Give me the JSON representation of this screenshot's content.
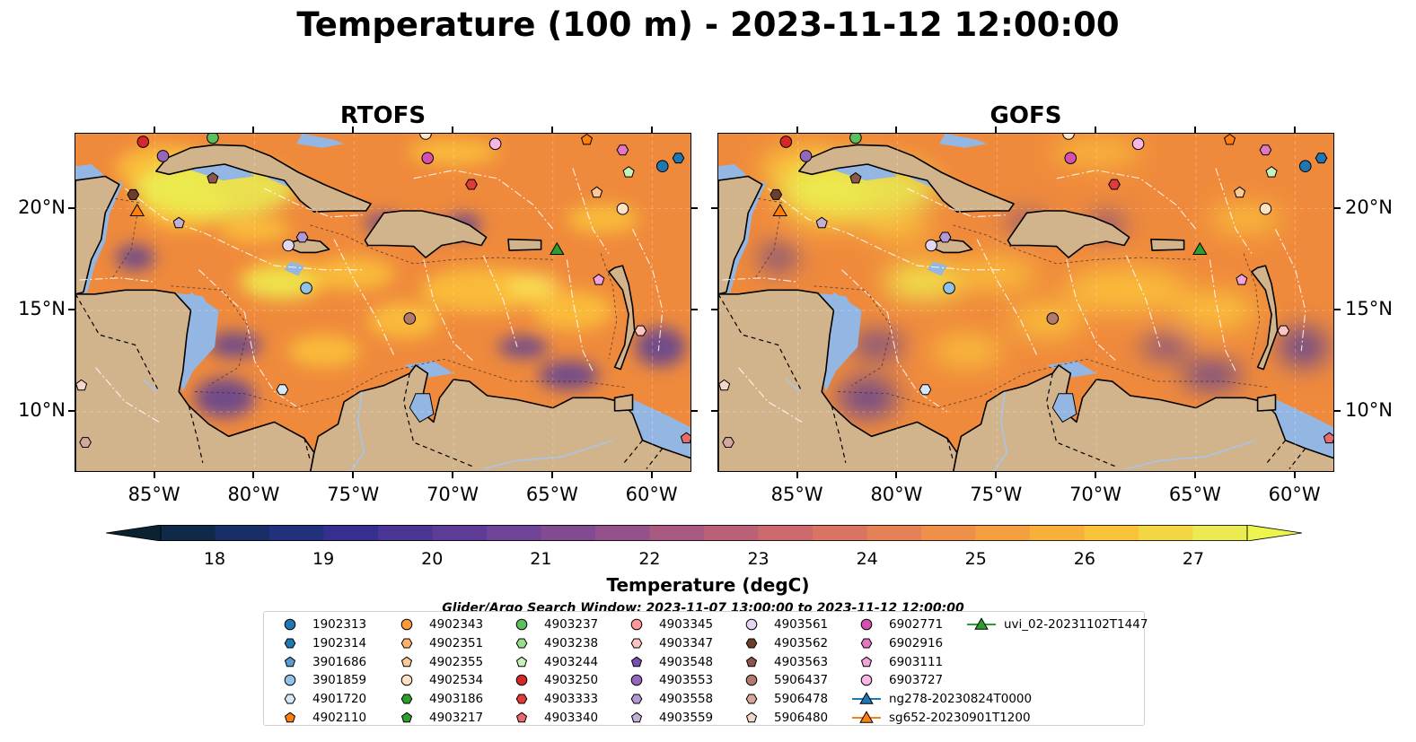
{
  "title": "Temperature (100 m) - 2023-11-12 12:00:00",
  "panels": [
    {
      "title": "RTOFS",
      "variant": "rtofs"
    },
    {
      "title": "GOFS",
      "variant": "gofs"
    }
  ],
  "axes": {
    "lon_ticks": [
      "85°W",
      "80°W",
      "75°W",
      "70°W",
      "65°W",
      "60°W"
    ],
    "lon_values": [
      -85,
      -80,
      -75,
      -70,
      -65,
      -60
    ],
    "lat_ticks": [
      "20°N",
      "15°N",
      "10°N"
    ],
    "lat_values": [
      20,
      15,
      10
    ],
    "lon_range": [
      -89,
      -58
    ],
    "lat_range": [
      7,
      23.7
    ]
  },
  "colorbar": {
    "label": "Temperature (degC)",
    "ticks": [
      "18",
      "19",
      "20",
      "21",
      "22",
      "23",
      "24",
      "25",
      "26",
      "27"
    ],
    "range": [
      18,
      27
    ],
    "extend": "both"
  },
  "search_window": "Glider/Argo Search Window: 2023-11-07 13:00:00 to 2023-11-12 12:00:00",
  "colors": {
    "ocean_shelf": "#94b6e2",
    "land": "#d2b48c",
    "deep_cold": "#0b2233"
  },
  "legend": [
    {
      "label": "1902313",
      "color": "#1f77b4",
      "marker": "circle"
    },
    {
      "label": "1902314",
      "color": "#1f77b4",
      "marker": "hexagon"
    },
    {
      "label": "3901686",
      "color": "#5a9bd4",
      "marker": "pentagon"
    },
    {
      "label": "3901859",
      "color": "#93c2e8",
      "marker": "circle"
    },
    {
      "label": "4901720",
      "color": "#d4e8fa",
      "marker": "hexagon"
    },
    {
      "label": "4902110",
      "color": "#ff7f0e",
      "marker": "pentagon"
    },
    {
      "label": "4902343",
      "color": "#ff9a3c",
      "marker": "circle"
    },
    {
      "label": "4902351",
      "color": "#ffb26b",
      "marker": "hexagon"
    },
    {
      "label": "4902355",
      "color": "#ffc997",
      "marker": "pentagon"
    },
    {
      "label": "4902534",
      "color": "#ffe2c4",
      "marker": "circle"
    },
    {
      "label": "4903186",
      "color": "#2ca02c",
      "marker": "hexagon"
    },
    {
      "label": "4903217",
      "color": "#2ca02c",
      "marker": "pentagon"
    },
    {
      "label": "4903237",
      "color": "#5cbf5c",
      "marker": "circle"
    },
    {
      "label": "4903238",
      "color": "#98df8a",
      "marker": "hexagon"
    },
    {
      "label": "4903244",
      "color": "#c7f2bd",
      "marker": "pentagon"
    },
    {
      "label": "4903250",
      "color": "#d62728",
      "marker": "circle"
    },
    {
      "label": "4903333",
      "color": "#e03a3a",
      "marker": "hexagon"
    },
    {
      "label": "4903340",
      "color": "#e86b6b",
      "marker": "pentagon"
    },
    {
      "label": "4903345",
      "color": "#ff9896",
      "marker": "circle"
    },
    {
      "label": "4903347",
      "color": "#ffc4c2",
      "marker": "hexagon"
    },
    {
      "label": "4903548",
      "color": "#7a4fb0",
      "marker": "pentagon"
    },
    {
      "label": "4903553",
      "color": "#9467bd",
      "marker": "circle"
    },
    {
      "label": "4903558",
      "color": "#b497d6",
      "marker": "hexagon"
    },
    {
      "label": "4903559",
      "color": "#c5b0d5",
      "marker": "pentagon"
    },
    {
      "label": "4903561",
      "color": "#e2d6f0",
      "marker": "circle"
    },
    {
      "label": "4903562",
      "color": "#6b3f2c",
      "marker": "hexagon"
    },
    {
      "label": "4903563",
      "color": "#8c564b",
      "marker": "pentagon"
    },
    {
      "label": "5906437",
      "color": "#b07a6e",
      "marker": "circle"
    },
    {
      "label": "5906478",
      "color": "#d4a89c",
      "marker": "hexagon"
    },
    {
      "label": "5906480",
      "color": "#f2d7cd",
      "marker": "pentagon"
    },
    {
      "label": "6902771",
      "color": "#d44fb0",
      "marker": "circle"
    },
    {
      "label": "6902916",
      "color": "#e377c2",
      "marker": "hexagon"
    },
    {
      "label": "6903111",
      "color": "#f2a3dc",
      "marker": "pentagon"
    },
    {
      "label": "6903727",
      "color": "#f7b6e6",
      "marker": "circle"
    },
    {
      "label": "ng278-20230824T0000",
      "color": "#1f77b4",
      "marker": "triangle-line"
    },
    {
      "label": "sg652-20230901T1200",
      "color": "#ff7f0e",
      "marker": "triangle-line"
    },
    {
      "label": "uvi_02-20231102T1447",
      "color": "#2ca02c",
      "marker": "triangle-line"
    }
  ],
  "floats_on_map": [
    {
      "id": "4903250",
      "lon": -85.6,
      "lat": 23.3
    },
    {
      "id": "4903237",
      "lon": -82.1,
      "lat": 23.5
    },
    {
      "id": "4903553",
      "lon": -84.6,
      "lat": 22.6
    },
    {
      "id": "4903563",
      "lon": -82.1,
      "lat": 21.5
    },
    {
      "id": "4903562",
      "lon": -86.1,
      "lat": 20.7
    },
    {
      "id": "sg652-20230901T1200",
      "lon": -85.9,
      "lat": 19.9
    },
    {
      "id": "4903559",
      "lon": -83.8,
      "lat": 19.3
    },
    {
      "id": "4903561",
      "lon": -78.3,
      "lat": 18.2
    },
    {
      "id": "4903558",
      "lon": -77.6,
      "lat": 18.6
    },
    {
      "id": "3901859",
      "lon": -77.4,
      "lat": 16.1
    },
    {
      "id": "4901720",
      "lon": -78.6,
      "lat": 11.1
    },
    {
      "id": "5906437",
      "lon": -72.2,
      "lat": 14.6
    },
    {
      "id": "5906478",
      "lon": -88.5,
      "lat": 8.5
    },
    {
      "id": "5906480",
      "lon": -88.7,
      "lat": 11.3
    },
    {
      "id": "4902534",
      "lon": -71.4,
      "lat": 23.7
    },
    {
      "id": "6903727",
      "lon": -67.9,
      "lat": 23.2
    },
    {
      "id": "6902771",
      "lon": -71.3,
      "lat": 22.5
    },
    {
      "id": "4903333",
      "lon": -69.1,
      "lat": 21.2
    },
    {
      "id": "4902110",
      "lon": -63.3,
      "lat": 23.4
    },
    {
      "id": "6902916",
      "lon": -61.5,
      "lat": 22.9
    },
    {
      "id": "4903244",
      "lon": -61.2,
      "lat": 21.8
    },
    {
      "id": "4902355",
      "lon": -62.8,
      "lat": 20.8
    },
    {
      "id": "4902534b",
      "lon": -61.5,
      "lat": 20.0
    },
    {
      "id": "1902313",
      "lon": -59.5,
      "lat": 22.1
    },
    {
      "id": "1902314",
      "lon": -58.7,
      "lat": 22.5
    },
    {
      "id": "uvi_02-20231102T1447",
      "lon": -64.8,
      "lat": 18.0
    },
    {
      "id": "6903111",
      "lon": -62.7,
      "lat": 16.5
    },
    {
      "id": "4903347",
      "lon": -60.6,
      "lat": 14.0
    },
    {
      "id": "4903340",
      "lon": -58.3,
      "lat": 8.7
    }
  ]
}
